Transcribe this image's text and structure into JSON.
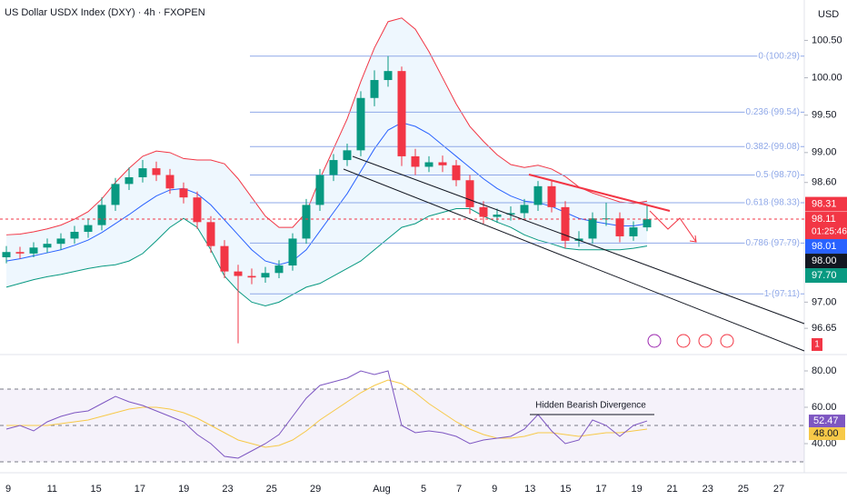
{
  "chart_data": [
    {
      "type": "candlestick",
      "title": "US Dollar USDX Index (DXY) · 4h · FXOPEN",
      "y_label": "USD",
      "open": [
        97.6,
        97.67,
        97.65,
        97.73,
        97.78,
        97.85,
        97.94,
        98.03,
        98.3,
        98.58,
        98.67,
        98.79,
        98.7,
        98.52,
        98.4,
        98.07,
        97.75,
        97.41,
        97.35,
        97.33,
        97.39,
        97.49,
        97.85,
        98.3,
        98.7,
        98.9,
        99.03,
        99.73,
        99.97,
        100.09,
        98.95,
        98.81,
        98.87,
        98.83,
        98.63,
        98.27,
        98.14,
        98.17,
        98.19,
        98.3,
        98.55,
        98.27,
        97.82,
        97.85,
        98.12,
        98.12,
        97.88,
        98.0
      ],
      "high": [
        97.75,
        97.74,
        97.8,
        97.85,
        97.92,
        98.02,
        98.12,
        98.4,
        98.66,
        98.8,
        98.9,
        98.88,
        98.78,
        98.6,
        98.48,
        98.15,
        97.83,
        97.5,
        97.45,
        97.47,
        97.56,
        97.92,
        98.38,
        98.78,
        98.98,
        99.12,
        99.82,
        100.1,
        100.29,
        100.15,
        99.05,
        98.95,
        98.96,
        98.9,
        98.7,
        98.35,
        98.25,
        98.28,
        98.38,
        98.62,
        98.62,
        98.35,
        97.95,
        98.2,
        98.33,
        98.2,
        98.08,
        98.31
      ],
      "low": [
        97.52,
        97.58,
        97.6,
        97.66,
        97.7,
        97.78,
        97.86,
        97.96,
        98.22,
        98.5,
        98.6,
        98.62,
        98.45,
        98.32,
        97.98,
        97.66,
        97.32,
        96.45,
        97.24,
        97.26,
        97.32,
        97.42,
        97.78,
        98.22,
        98.62,
        98.82,
        98.95,
        99.62,
        99.88,
        98.82,
        98.7,
        98.74,
        98.74,
        98.55,
        98.18,
        98.05,
        98.06,
        98.09,
        98.12,
        98.22,
        98.2,
        97.72,
        97.74,
        97.78,
        98.02,
        97.8,
        97.82,
        97.95
      ],
      "close": [
        97.67,
        97.65,
        97.73,
        97.78,
        97.85,
        97.94,
        98.03,
        98.3,
        98.58,
        98.67,
        98.79,
        98.7,
        98.52,
        98.4,
        98.07,
        97.75,
        97.41,
        97.35,
        97.33,
        97.39,
        97.49,
        97.85,
        98.3,
        98.7,
        98.9,
        99.03,
        99.73,
        99.97,
        100.09,
        98.95,
        98.81,
        98.87,
        98.83,
        98.63,
        98.27,
        98.14,
        98.17,
        98.19,
        98.3,
        98.55,
        98.27,
        97.82,
        97.85,
        98.12,
        98.12,
        97.88,
        98.0,
        98.11
      ],
      "up_color": "#089981",
      "down_color": "#f23645",
      "bollinger": {
        "upper": [
          97.9,
          97.91,
          97.94,
          97.98,
          98.03,
          98.11,
          98.21,
          98.38,
          98.6,
          98.79,
          98.95,
          99.02,
          99.0,
          98.92,
          98.9,
          98.9,
          98.85,
          98.65,
          98.4,
          98.15,
          98.0,
          98.0,
          98.2,
          98.65,
          99.05,
          99.45,
          99.95,
          100.4,
          100.75,
          100.8,
          100.65,
          100.35,
          100.0,
          99.65,
          99.35,
          99.15,
          98.97,
          98.84,
          98.8,
          98.83,
          98.78,
          98.68,
          98.54,
          98.46,
          98.4,
          98.34,
          98.32,
          98.35
        ],
        "middle": [
          97.55,
          97.58,
          97.62,
          97.66,
          97.7,
          97.76,
          97.83,
          97.93,
          98.05,
          98.17,
          98.3,
          98.42,
          98.5,
          98.52,
          98.45,
          98.3,
          98.1,
          97.9,
          97.7,
          97.55,
          97.5,
          97.55,
          97.7,
          97.95,
          98.2,
          98.45,
          98.75,
          99.05,
          99.3,
          99.4,
          99.35,
          99.25,
          99.1,
          98.95,
          98.8,
          98.65,
          98.52,
          98.42,
          98.35,
          98.33,
          98.28,
          98.2,
          98.12,
          98.08,
          98.05,
          98.02,
          98.02,
          98.05
        ],
        "lower": [
          97.2,
          97.25,
          97.3,
          97.34,
          97.37,
          97.41,
          97.45,
          97.48,
          97.5,
          97.55,
          97.65,
          97.82,
          98.0,
          98.12,
          98.0,
          97.7,
          97.35,
          97.15,
          97.0,
          96.95,
          97.0,
          97.1,
          97.2,
          97.25,
          97.35,
          97.45,
          97.55,
          97.7,
          97.85,
          98.0,
          98.05,
          98.15,
          98.2,
          98.25,
          98.25,
          98.15,
          98.07,
          98.0,
          97.9,
          97.83,
          97.78,
          97.72,
          97.7,
          97.7,
          97.7,
          97.7,
          97.72,
          97.75
        ],
        "upper_color": "#f23645",
        "middle_color": "#2962ff",
        "lower_color": "#089981",
        "fill": "#2196f3"
      },
      "ylim": [
        96.36,
        101.04
      ],
      "yticks": [
        {
          "value": 100.5,
          "label": "100.50"
        },
        {
          "value": 100,
          "label": "100.00"
        },
        {
          "value": 99.5,
          "label": "99.50"
        },
        {
          "value": 99,
          "label": "99.00"
        },
        {
          "value": 98.6,
          "label": "98.60"
        },
        {
          "value": 97,
          "label": "97.00"
        },
        {
          "value": 96.65,
          "label": "96.65"
        }
      ],
      "fib_levels": [
        {
          "value": 100.29,
          "label": "0 (100.29)"
        },
        {
          "value": 99.54,
          "label": "0.236 (99.54)"
        },
        {
          "value": 99.08,
          "label": "0.382 (99.08)"
        },
        {
          "value": 98.7,
          "label": "0.5 (98.70)"
        },
        {
          "value": 98.33,
          "label": "0.618 (98.33)"
        },
        {
          "value": 97.79,
          "label": "0.786 (97.79)"
        },
        {
          "value": 97.11,
          "label": "1 (97.11)"
        }
      ],
      "fib_color": "#8fa8e8",
      "price_badges": [
        {
          "value": 98.31,
          "label": "98.31",
          "color": "#f23645"
        },
        {
          "value": 98.11,
          "label": "98.11",
          "timer": "01:25:46",
          "color": "#f23645"
        },
        {
          "value": 98.01,
          "label": "98.01",
          "color": "#2962ff"
        },
        {
          "value": 98.0,
          "label": "98.00",
          "color": "#131722"
        },
        {
          "value": 97.7,
          "label": "97.70",
          "color": "#089981"
        }
      ],
      "event_badge": "1",
      "x_labels": [
        "9",
        "11",
        "15",
        "17",
        "19",
        "23",
        "25",
        "29",
        "Aug",
        "5",
        "7",
        "9",
        "13",
        "15",
        "17",
        "19",
        "21",
        "23",
        "25",
        "27"
      ]
    },
    {
      "type": "rsi",
      "values": [
        48,
        50,
        47,
        52,
        55,
        57,
        58,
        62,
        66,
        63,
        61,
        58,
        55,
        52,
        45,
        40,
        33,
        32,
        36,
        40,
        45,
        55,
        65,
        72,
        74,
        76,
        80,
        78,
        80,
        50,
        46,
        47,
        46,
        44,
        40,
        42,
        43,
        44,
        48,
        56,
        47,
        40,
        42,
        53,
        50,
        44,
        50,
        52.47
      ],
      "ma": [
        50,
        50,
        50,
        50,
        51,
        52,
        53,
        55,
        57,
        59,
        60,
        60,
        59,
        57,
        54,
        50,
        46,
        42,
        40,
        38,
        39,
        42,
        47,
        53,
        58,
        63,
        68,
        72,
        75,
        73,
        68,
        62,
        57,
        52,
        48,
        45,
        43,
        43,
        44,
        46,
        46,
        45,
        44,
        45,
        46,
        46,
        47,
        48
      ],
      "color": "#7e57c2",
      "ma_color": "#f7c948",
      "ylim": [
        28,
        86.5
      ],
      "yticks": [
        {
          "value": 80,
          "label": "80.00"
        },
        {
          "value": 60,
          "label": "60.00"
        },
        {
          "value": 40,
          "label": "40.00"
        }
      ],
      "levels": [
        70,
        50,
        30
      ],
      "annotation": "Hidden Bearish Divergence",
      "value_badges": [
        {
          "value": 52.47,
          "label": "52.47",
          "color": "#7e57c2"
        },
        {
          "value": 48,
          "label": "48.00",
          "color": "#f7c948"
        }
      ]
    }
  ]
}
